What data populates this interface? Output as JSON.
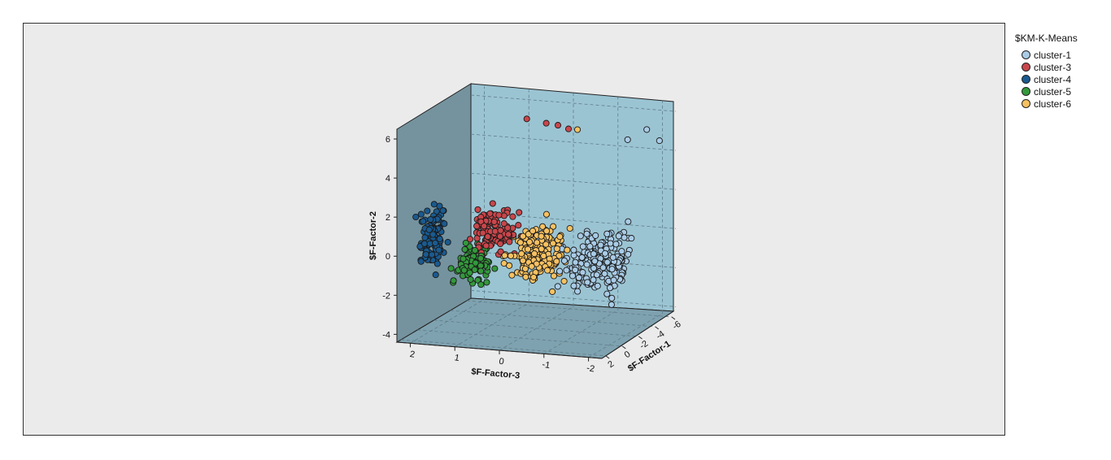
{
  "chart_data": {
    "type": "scatter",
    "subtype": "3d-scatter",
    "xlabel": "$F-Factor-3",
    "ylabel": "$F-Factor-2",
    "zlabel": "$F-Factor-1",
    "x_ticks": [
      "2",
      "1",
      "0",
      "-1",
      "-2"
    ],
    "y_ticks": [
      "6",
      "4",
      "2",
      "0",
      "-2",
      "-4"
    ],
    "z_ticks": [
      "2",
      "0",
      "-2",
      "-4",
      "-6"
    ],
    "xlim": [
      2.3,
      -2.3
    ],
    "ylim": [
      -4.4,
      6.5
    ],
    "zlim": [
      2.5,
      -6.5
    ],
    "grid": true,
    "legend": {
      "title": "$KM-K-Means",
      "position": "top-right"
    },
    "series": [
      {
        "name": "cluster-1",
        "color": "#a9cbe6",
        "center": [
          -1.8,
          -0.2,
          0.0
        ],
        "spread": [
          0.7,
          1.2,
          1.4
        ],
        "count": 190,
        "outliers": [
          [
            -2.2,
            5.8,
            -3.5
          ],
          [
            -1.9,
            5.4,
            -2.8
          ],
          [
            -2.3,
            5.0,
            -4.5
          ]
        ]
      },
      {
        "name": "cluster-3",
        "color": "#c9464b",
        "center": [
          0.5,
          1.0,
          0.2
        ],
        "spread": [
          0.45,
          0.9,
          1.0
        ],
        "count": 120,
        "outliers": [
          [
            0.4,
            6.0,
            -3.0
          ],
          [
            0.0,
            5.8,
            -3.2
          ],
          [
            -0.3,
            5.8,
            -3.0
          ],
          [
            -0.5,
            5.6,
            -3.2
          ]
        ]
      },
      {
        "name": "cluster-4",
        "color": "#1a5a8f",
        "center": [
          1.95,
          0.4,
          0.2
        ],
        "spread": [
          0.2,
          1.3,
          0.9
        ],
        "count": 110,
        "outliers": []
      },
      {
        "name": "cluster-5",
        "color": "#33993c",
        "center": [
          1.0,
          -0.7,
          0.5
        ],
        "spread": [
          0.4,
          0.7,
          0.8
        ],
        "count": 110,
        "outliers": []
      },
      {
        "name": "cluster-6",
        "color": "#f7c161",
        "center": [
          -0.4,
          0.0,
          0.3
        ],
        "spread": [
          0.45,
          1.2,
          1.0
        ],
        "count": 170,
        "outliers": [
          [
            -0.7,
            5.6,
            -3.2
          ]
        ]
      }
    ]
  }
}
